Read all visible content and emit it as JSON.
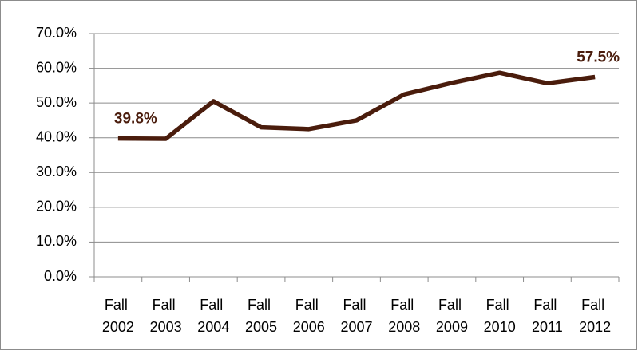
{
  "chart_data": {
    "type": "line",
    "categories": [
      "Fall 2002",
      "Fall 2003",
      "Fall 2004",
      "Fall 2005",
      "Fall 2006",
      "Fall 2007",
      "Fall 2008",
      "Fall 2009",
      "Fall 2010",
      "Fall 2011",
      "Fall 2012"
    ],
    "values": [
      39.8,
      39.7,
      50.5,
      43.0,
      42.5,
      45.0,
      52.5,
      55.8,
      58.7,
      55.7,
      57.5
    ],
    "value_labels": [
      "39.8%",
      null,
      null,
      null,
      null,
      null,
      null,
      null,
      null,
      null,
      "57.5%"
    ],
    "color": "#4a1c0c",
    "ylim": [
      0,
      70
    ],
    "yticks": [
      {
        "value": 0,
        "label": "0.0%"
      },
      {
        "value": 10,
        "label": "10.0%"
      },
      {
        "value": 20,
        "label": "20.0%"
      },
      {
        "value": 30,
        "label": "30.0%"
      },
      {
        "value": 40,
        "label": "40.0%"
      },
      {
        "value": 50,
        "label": "50.0%"
      },
      {
        "value": 60,
        "label": "60.0%"
      },
      {
        "value": 70,
        "label": "70.0%"
      }
    ],
    "grid": true
  }
}
